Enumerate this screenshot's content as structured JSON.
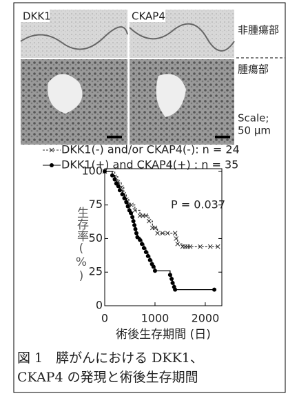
{
  "panel": {
    "labels": [
      "DKK1",
      "CKAP4"
    ],
    "region_normal": "非腫瘍部",
    "region_tumor": "腫瘍部",
    "scale_lines": [
      "Scale;",
      "50 μm"
    ]
  },
  "chart_data": {
    "type": "line",
    "step": true,
    "xlabel": "術後生存期間 (日)",
    "ylabel": "生存率(%)",
    "annotation": "P = 0.037",
    "xlim": [
      0,
      2330
    ],
    "ylim": [
      0,
      102
    ],
    "xticks": [
      0,
      1000,
      2000
    ],
    "yticks": [
      0,
      25,
      50,
      75,
      100
    ],
    "series": [
      {
        "name": "DKK1(-) and/or CKAP4(-): n = 24",
        "color": "#333333",
        "dash": true,
        "marker": "x",
        "x": [
          0,
          200,
          260,
          330,
          380,
          430,
          480,
          530,
          600,
          700,
          760,
          820,
          880,
          950,
          1000,
          1050,
          1150,
          1250,
          1400,
          1420,
          1450,
          1550,
          1600,
          1650,
          1700,
          1900,
          2100,
          2250
        ],
        "values": [
          100,
          96,
          92,
          88,
          83,
          79,
          75,
          75,
          71,
          67,
          67,
          67,
          63,
          58,
          58,
          54,
          54,
          54,
          54,
          50,
          46,
          44,
          44,
          44,
          44,
          44,
          44,
          44
        ]
      },
      {
        "name": "DKK1(+) and CKAP4(+)  : n = 35",
        "color": "#000000",
        "dash": false,
        "marker": "circle",
        "x": [
          0,
          150,
          200,
          230,
          270,
          300,
          350,
          390,
          430,
          460,
          490,
          520,
          550,
          570,
          590,
          610,
          630,
          650,
          700,
          740,
          780,
          820,
          860,
          900,
          940,
          970,
          1000,
          1300,
          1330,
          1350,
          1380,
          1400,
          2180
        ],
        "values": [
          100,
          97,
          94,
          91,
          89,
          86,
          83,
          80,
          77,
          74,
          71,
          69,
          66,
          63,
          60,
          57,
          54,
          51,
          49,
          46,
          43,
          40,
          37,
          34,
          31,
          29,
          26,
          23,
          20,
          17,
          14,
          12,
          12
        ]
      }
    ]
  },
  "caption": [
    "図 1　膵がんにおける DKK1、",
    "CKAP4 の発現と術後生存期間"
  ]
}
